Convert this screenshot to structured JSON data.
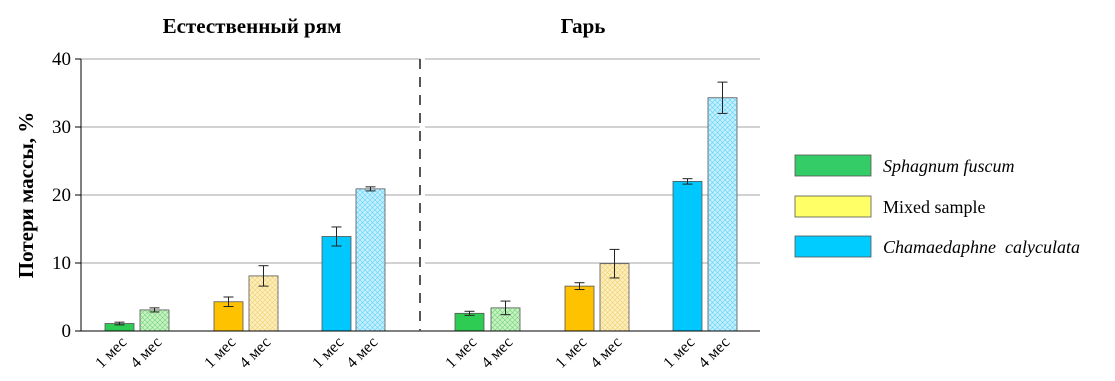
{
  "chart_data": {
    "type": "bar",
    "ylabel": "Потери массы, %",
    "ylim": [
      0,
      40
    ],
    "yticks": [
      0,
      10,
      20,
      30,
      40
    ],
    "grid": "horizontal",
    "legend_position": "right",
    "categories": [
      "1 мес",
      "4 мес",
      "1 мес",
      "4 мес",
      "1 мес",
      "4 мес"
    ],
    "series": [
      {
        "name": "Sphagnum fuscum",
        "style": "italic",
        "color_solid": "#2ecc52",
        "color_light": "#bff0b8"
      },
      {
        "name": "Mixed sample",
        "style": "normal",
        "color_solid": "#ffc200",
        "color_light": "#fbe9a6"
      },
      {
        "name": "Chamaedaphne  calyculata",
        "style": "italic",
        "color_solid": "#00c8ff",
        "color_light": "#b8ecff"
      }
    ],
    "legend_colors": [
      "#33cc66",
      "#ffff66",
      "#00ccff"
    ],
    "panels": [
      {
        "title": "Естественный рям",
        "bars": [
          {
            "series": 0,
            "label": "1 мес",
            "value": 1.1,
            "err": 0.2,
            "hatched": false
          },
          {
            "series": 0,
            "label": "4 мес",
            "value": 3.1,
            "err": 0.3,
            "hatched": true
          },
          {
            "series": 1,
            "label": "1 мес",
            "value": 4.3,
            "err": 0.7,
            "hatched": false
          },
          {
            "series": 1,
            "label": "4 мес",
            "value": 8.1,
            "err": 1.5,
            "hatched": true
          },
          {
            "series": 2,
            "label": "1 мес",
            "value": 13.9,
            "err": 1.4,
            "hatched": false
          },
          {
            "series": 2,
            "label": "4 мес",
            "value": 20.9,
            "err": 0.3,
            "hatched": true
          }
        ]
      },
      {
        "title": "Гарь",
        "bars": [
          {
            "series": 0,
            "label": "1 мес",
            "value": 2.6,
            "err": 0.3,
            "hatched": false
          },
          {
            "series": 0,
            "label": "4 мес",
            "value": 3.4,
            "err": 1.0,
            "hatched": true
          },
          {
            "series": 1,
            "label": "1 мес",
            "value": 6.6,
            "err": 0.5,
            "hatched": false
          },
          {
            "series": 1,
            "label": "4 мес",
            "value": 9.9,
            "err": 2.1,
            "hatched": true
          },
          {
            "series": 2,
            "label": "1 мес",
            "value": 22.0,
            "err": 0.4,
            "hatched": false
          },
          {
            "series": 2,
            "label": "4 мес",
            "value": 34.3,
            "err": 2.3,
            "hatched": true
          }
        ]
      }
    ]
  }
}
